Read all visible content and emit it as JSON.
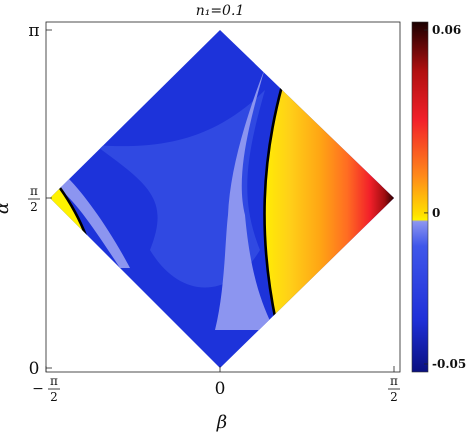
{
  "chart_data": {
    "type": "heatmap",
    "title": "n₁=0.1",
    "xlabel": "β",
    "ylabel": "α",
    "xlim": [
      "-π/2",
      "π/2"
    ],
    "ylim": [
      "0",
      "π"
    ],
    "x_ticks": [
      {
        "num": "−",
        "frac_num": "π",
        "frac_den": "2"
      },
      {
        "num": "0"
      },
      {
        "num": "",
        "frac_num": "π",
        "frac_den": "2"
      }
    ],
    "y_ticks": [
      {
        "num": "0"
      },
      {
        "num": "",
        "frac_num": "π",
        "frac_den": "2"
      },
      {
        "num": "π"
      }
    ],
    "domain": "diamond with vertices (β,α) = (0,0), (π/2,π/2), (0,π), (−π/2,π/2)",
    "colorbar": {
      "min": -0.05,
      "max": 0.06,
      "ticks": [
        "0.06",
        "0",
        "-0.05"
      ],
      "tick_values": [
        0.06,
        0,
        -0.05
      ]
    },
    "zero_contour": "black",
    "colors": {
      "deep_blue": "#1b2fd6",
      "mid_blue": "#3a4ee4",
      "light_blue": "#8c95f0",
      "yellow": "#fff200",
      "orange": "#ffa514",
      "red": "#f2202a",
      "dark_red": "#3a0000",
      "contour": "#000000"
    }
  }
}
